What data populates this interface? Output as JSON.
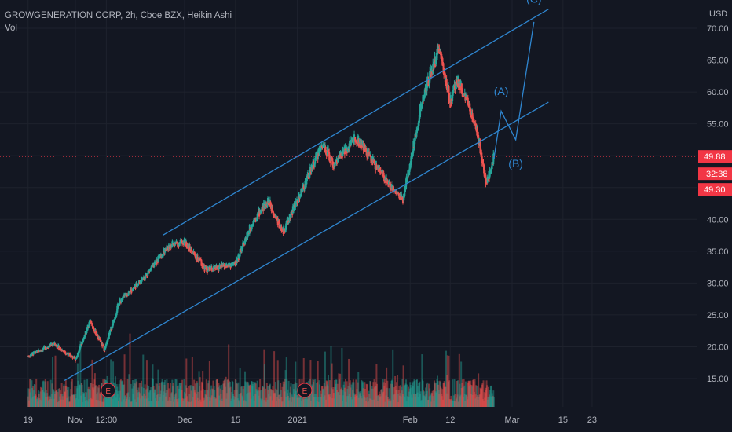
{
  "header": {
    "title": "GROWGENERATION CORP, 2h, Cboe BZX, Heikin Ashi",
    "indicator": "Vol",
    "currency": "USD"
  },
  "price_badges": {
    "last_price": "49.88",
    "countdown": "32:38",
    "low_price": "49.30"
  },
  "colors": {
    "background": "#131722",
    "up": "#26a69a",
    "down": "#ef5350",
    "annotation": "#2f86d0",
    "badge_red": "#f23645"
  },
  "chart_data": {
    "type": "candlestick",
    "title": "GROWGENERATION CORP, 2h, Cboe BZX, Heikin Ashi",
    "price_axis": {
      "min": 10,
      "max": 73,
      "ticks": [
        "70.00",
        "65.00",
        "60.00",
        "55.00",
        "50.00",
        "45.00",
        "40.00",
        "35.00",
        "30.00",
        "25.00",
        "20.00",
        "15.00"
      ],
      "tick_values": [
        70,
        65,
        60,
        55,
        50,
        45,
        40,
        35,
        30,
        25,
        20,
        15
      ]
    },
    "time_axis": {
      "labels": [
        "19",
        "Nov",
        "12:00",
        "Dec",
        "15",
        "2021",
        "Feb",
        "12",
        "Mar",
        "15",
        "23"
      ],
      "dates": [
        "2020-10-19",
        "2020-11-01",
        "2020-11-09T12:00",
        "2020-12-01",
        "2020-12-15",
        "2021-01-01",
        "2021-02-01",
        "2021-02-12",
        "2021-03-01",
        "2021-03-15",
        "2021-03-23"
      ]
    },
    "price_path_anchors": [
      {
        "date": "2020-10-19",
        "price": 18.5
      },
      {
        "date": "2020-10-26",
        "price": 20.5
      },
      {
        "date": "2020-11-01",
        "price": 18.0
      },
      {
        "date": "2020-11-05",
        "price": 24.0
      },
      {
        "date": "2020-11-09",
        "price": 19.5
      },
      {
        "date": "2020-11-13",
        "price": 27.0
      },
      {
        "date": "2020-11-20",
        "price": 31.0
      },
      {
        "date": "2020-11-27",
        "price": 36.0
      },
      {
        "date": "2020-12-01",
        "price": 36.5
      },
      {
        "date": "2020-12-07",
        "price": 32.0
      },
      {
        "date": "2020-12-15",
        "price": 33.0
      },
      {
        "date": "2020-12-20",
        "price": 40.0
      },
      {
        "date": "2020-12-24",
        "price": 43.0
      },
      {
        "date": "2020-12-28",
        "price": 38.0
      },
      {
        "date": "2021-01-01",
        "price": 43.0
      },
      {
        "date": "2021-01-08",
        "price": 52.0
      },
      {
        "date": "2021-01-11",
        "price": 48.5
      },
      {
        "date": "2021-01-17",
        "price": 53.0
      },
      {
        "date": "2021-01-25",
        "price": 46.5
      },
      {
        "date": "2021-01-30",
        "price": 43.0
      },
      {
        "date": "2021-02-04",
        "price": 58.0
      },
      {
        "date": "2021-02-09",
        "price": 67.0
      },
      {
        "date": "2021-02-12",
        "price": 58.5
      },
      {
        "date": "2021-02-14",
        "price": 62.0
      },
      {
        "date": "2021-02-19",
        "price": 55.0
      },
      {
        "date": "2021-02-22",
        "price": 45.5
      },
      {
        "date": "2021-02-24",
        "price": 49.88
      }
    ],
    "earnings_markers": [
      {
        "label": "E",
        "date": "2020-11-10"
      },
      {
        "label": "E",
        "date": "2021-01-03"
      }
    ],
    "annotations": {
      "channel_upper": [
        {
          "date": "2020-11-25",
          "price": 37.5
        },
        {
          "date": "2021-03-11",
          "price": 73.0
        }
      ],
      "channel_lower": [
        {
          "date": "2020-10-29",
          "price": 14.7
        },
        {
          "date": "2021-03-11",
          "price": 58.4
        }
      ],
      "wave_path": [
        {
          "date": "2021-02-24",
          "price": 49.5
        },
        {
          "date": "2021-02-26",
          "price": 57.0
        },
        {
          "date": "2021-03-02",
          "price": 52.5
        },
        {
          "date": "2021-03-07",
          "price": 71.0
        }
      ],
      "wave_labels": [
        {
          "label": "(A)",
          "date": "2021-02-26",
          "price": 59.5
        },
        {
          "label": "(B)",
          "date": "2021-03-02",
          "price": 48.2
        },
        {
          "label": "(C)",
          "date": "2021-03-07",
          "price": 74.0
        }
      ]
    },
    "current_price": 49.88
  }
}
